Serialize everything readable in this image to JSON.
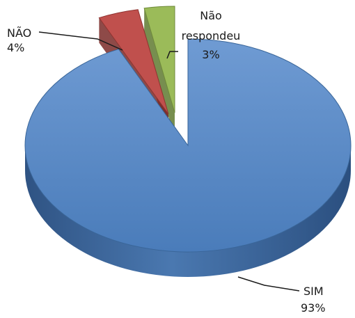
{
  "chart_data": {
    "type": "pie",
    "style": "3d-exploded",
    "slices": [
      {
        "label": "SIM",
        "value": 93,
        "value_label": "93%",
        "color": "#4f81bd"
      },
      {
        "label": "NÃO",
        "value": 4,
        "value_label": "4%",
        "color": "#c0504d"
      },
      {
        "label": "Não respondeu",
        "label_lines": [
          "Não",
          "respondeu"
        ],
        "value": 3,
        "value_label": "3%",
        "color": "#9bbb59"
      }
    ],
    "legend": "none"
  }
}
